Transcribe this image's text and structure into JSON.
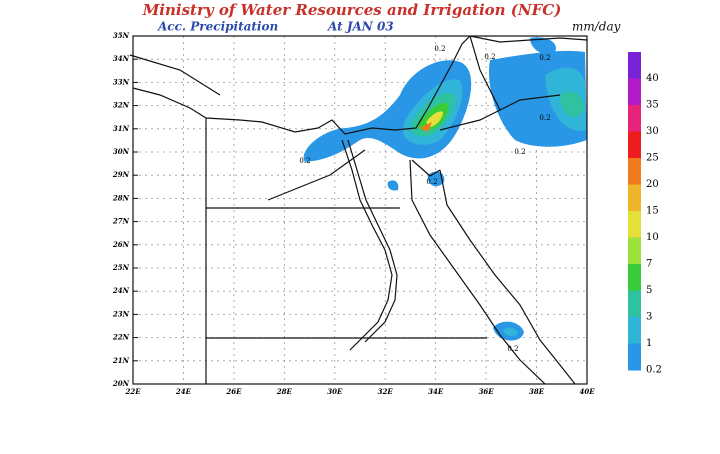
{
  "header": {
    "title": "Ministry of Water Resources and Irrigation (NFC)",
    "product": "Acc. Precipitation",
    "time": "At JAN 03",
    "unit": "mm/day"
  },
  "map": {
    "lat_labels": [
      "35N",
      "34N",
      "33N",
      "32N",
      "31N",
      "30N",
      "29N",
      "28N",
      "27N",
      "26N",
      "25N",
      "24N",
      "23N",
      "22N",
      "21N",
      "20N"
    ],
    "lon_labels": [
      "22E",
      "24E",
      "26E",
      "28E",
      "30E",
      "32E",
      "34E",
      "36E",
      "38E",
      "40E"
    ],
    "contour_labels": [
      "0.2",
      "0.2",
      "0.2",
      "0.2",
      "0.2",
      "0.2",
      "0.2",
      "0.2"
    ]
  },
  "legend": {
    "levels": [
      {
        "label": "40",
        "color": "#7a22d8"
      },
      {
        "label": "35",
        "color": "#b41bc8"
      },
      {
        "label": "30",
        "color": "#e8247a"
      },
      {
        "label": "25",
        "color": "#ee1c1c"
      },
      {
        "label": "20",
        "color": "#f07a1e"
      },
      {
        "label": "15",
        "color": "#f0b428"
      },
      {
        "label": "10",
        "color": "#e4e03a"
      },
      {
        "label": "7",
        "color": "#9ee03c"
      },
      {
        "label": "5",
        "color": "#38cc38"
      },
      {
        "label": "3",
        "color": "#2ec2a0"
      },
      {
        "label": "1",
        "color": "#30b4d8"
      },
      {
        "label": "0.2",
        "color": "#2a96e6"
      }
    ]
  }
}
